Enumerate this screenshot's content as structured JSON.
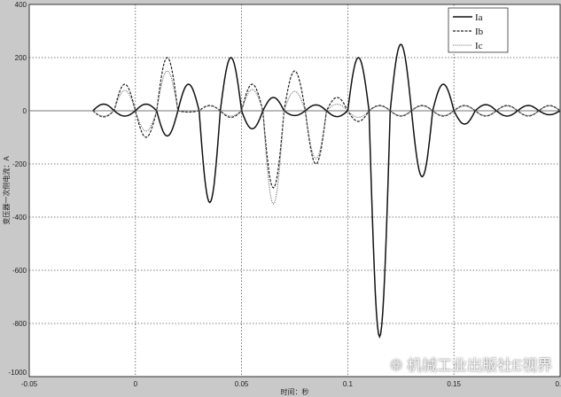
{
  "chart_data": {
    "type": "line",
    "title": "",
    "xlabel": "时间：秒",
    "ylabel": "变压器一次侧电流：A",
    "xlim": [
      -0.05,
      0.2
    ],
    "ylim": [
      -1000,
      400
    ],
    "xticks": [
      "-0.05",
      "0",
      "0.05",
      "0.1",
      "0.15",
      "0.2"
    ],
    "yticks": [
      "400",
      "200",
      "0",
      "-200",
      "-400",
      "-600",
      "-800",
      "-1000"
    ],
    "grid": true,
    "legend": "top-right",
    "waveform": "half-cycle lobes of 0.01 s starting at t = -0.02 s; values are lobe peaks (A)",
    "lobe_start_times": [
      -0.02,
      -0.01,
      0,
      0.01,
      0.02,
      0.03,
      0.04,
      0.05,
      0.06,
      0.07,
      0.08,
      0.09,
      0.1,
      0.11,
      0.12,
      0.13,
      0.14,
      0.15,
      0.16,
      0.17,
      0.18,
      0.19
    ],
    "series": [
      {
        "name": "Ia",
        "style": "solid",
        "color": "#111111",
        "values": [
          25,
          -20,
          25,
          -95,
          100,
          -345,
          200,
          -68,
          50,
          -18,
          22,
          -22,
          200,
          -850,
          250,
          -248,
          100,
          -50,
          23,
          -20,
          20,
          -15
        ]
      },
      {
        "name": "Ib",
        "style": "dashed",
        "color": "#222222",
        "values": [
          -23,
          100,
          -100,
          200,
          -5,
          20,
          -25,
          100,
          -290,
          150,
          -200,
          50,
          -40,
          20,
          -20,
          20,
          -20,
          20,
          -20,
          20,
          -20,
          20
        ]
      },
      {
        "name": "Ic",
        "style": "dotted",
        "color": "#666666",
        "values": [
          -20,
          77,
          -77,
          150,
          -5,
          18,
          -20,
          80,
          -350,
          73,
          -180,
          25,
          -25,
          18,
          -18,
          18,
          -18,
          18,
          -18,
          18,
          -18,
          18
        ]
      }
    ]
  },
  "watermark": "机械工业出版社E视界"
}
